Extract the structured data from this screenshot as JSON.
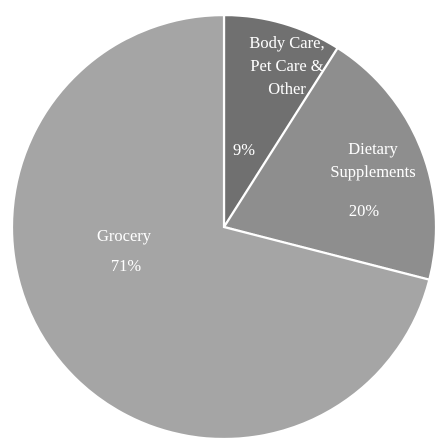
{
  "chart_data": {
    "type": "pie",
    "start_angle_deg": 0,
    "direction": "clockwise",
    "slices": [
      {
        "name": "Body Care,\nPet Care &\nOther",
        "value": 9,
        "label": "9%",
        "color": "#707070"
      },
      {
        "name": "Dietary\nSupplements",
        "value": 20,
        "label": "20%",
        "color": "#8e8e8e"
      },
      {
        "name": "Grocery",
        "value": 71,
        "label": "71%",
        "color": "#a5a5a5"
      }
    ]
  }
}
